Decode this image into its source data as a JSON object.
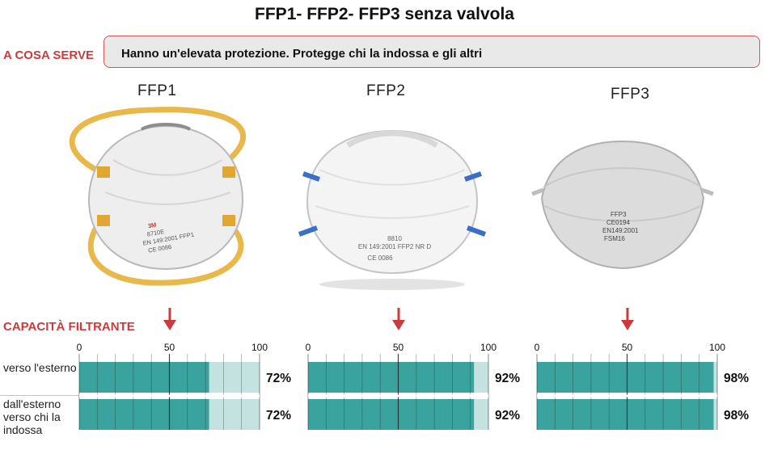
{
  "title": "FFP1- FFP2- FFP3 senza valvola",
  "purpose": {
    "label": "A COSA SERVE",
    "text": "Hanno un'elevata protezione. Protegge chi la indossa e gli altri"
  },
  "capacity_label": "CAPACITÀ FILTRANTE",
  "row_labels": {
    "outward": "verso l'esterno",
    "inward": "dall'esterno verso chi la indossa"
  },
  "axis_ticks": [
    "0",
    "50",
    "100"
  ],
  "masks": [
    {
      "name": "FFP1",
      "outward_pct": 72,
      "inward_pct": 72,
      "outward_label": "72%",
      "inward_label": "72%",
      "strap_color": "#e8b84a",
      "print_lines": [
        "3M",
        "8710E",
        "EN 149:2001 FFP1",
        "CE 0086"
      ]
    },
    {
      "name": "FFP2",
      "outward_pct": 92,
      "inward_pct": 92,
      "outward_label": "92%",
      "inward_label": "92%",
      "strap_color": "#3a6fc9",
      "print_lines": [
        "8810",
        "EN 149:2001 FFP2 NR D",
        "CE 0086"
      ]
    },
    {
      "name": "FFP3",
      "outward_pct": 98,
      "inward_pct": 98,
      "outward_label": "98%",
      "inward_label": "98%",
      "strap_color": "#bdbdbd",
      "print_lines": [
        "FFP3",
        "CE0194",
        "EN149:2001",
        "FSM16"
      ]
    }
  ],
  "colors": {
    "accent_red": "#cc3b3b",
    "bar_fill": "#3aa39d",
    "bar_track": "#c3e2e0",
    "purpose_bg": "#e9e9ea"
  }
}
